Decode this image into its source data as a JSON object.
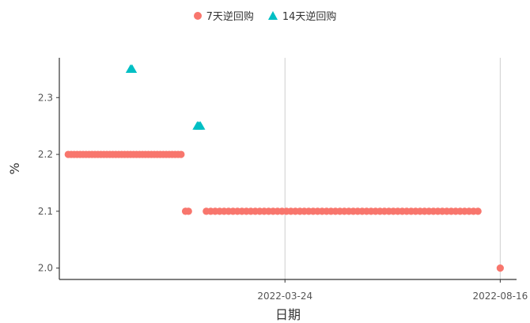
{
  "chart_data": {
    "type": "scatter",
    "xlabel": "日期",
    "ylabel": "%",
    "ylim": [
      1.98,
      2.37
    ],
    "xlim": [
      "2021-10-23",
      "2022-08-27"
    ],
    "x_ticks": [
      "2022-03-24",
      "2022-08-16"
    ],
    "y_ticks": [
      "2.0",
      "2.1",
      "2.2",
      "2.3"
    ],
    "y_tick_values": [
      2.0,
      2.1,
      2.2,
      2.3
    ],
    "legend_position": "top",
    "series": [
      {
        "name": "7天逆回购",
        "color": "#F8766D",
        "marker": "circle",
        "segments": [
          {
            "from": "2021-10-29",
            "to": "2022-01-14",
            "step_days": 2,
            "y": 2.2
          },
          {
            "from": "2022-01-16",
            "to": "2022-01-19",
            "step_days": 2,
            "y": 2.1
          },
          {
            "from": "2022-01-30",
            "to": "2022-08-02",
            "step_days": 3,
            "y": 2.1
          },
          {
            "from": "2022-08-16",
            "to": "2022-08-16",
            "step_days": 1,
            "y": 2.0
          }
        ]
      },
      {
        "name": "14天逆回购",
        "color": "#00BFC4",
        "marker": "triangle",
        "segments": [
          {
            "from": "2021-12-10",
            "to": "2021-12-11",
            "step_days": 1,
            "y": 2.35
          },
          {
            "from": "2022-01-24",
            "to": "2022-01-26",
            "step_days": 1,
            "y": 2.25
          }
        ]
      }
    ]
  }
}
